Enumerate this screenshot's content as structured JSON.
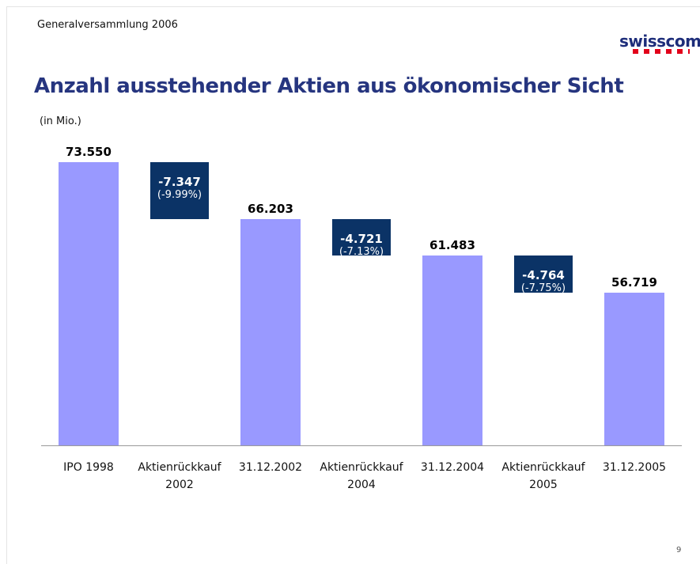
{
  "header": {
    "event": "Generalversammlung 2006",
    "logo": "swisscom",
    "page_number": "9"
  },
  "chart_data": {
    "type": "waterfall",
    "title": "Anzahl ausstehender Aktien aus ökonomischer Sicht",
    "unit_label": "(in Mio.)",
    "categories": [
      "IPO 1998",
      "Aktienrückkauf 2002",
      "31.12.2002",
      "Aktienrückkauf 2004",
      "31.12.2004",
      "Aktienrückkauf 2005",
      "31.12.2005"
    ],
    "kinds": [
      "total",
      "change",
      "total",
      "change",
      "total",
      "change",
      "total"
    ],
    "values": [
      73.55,
      -7.347,
      66.203,
      -4.721,
      61.483,
      -4.764,
      56.719
    ],
    "value_labels": [
      "73.550",
      "-7.347",
      "66.203",
      "-4.721",
      "61.483",
      "-4.764",
      "56.719"
    ],
    "change_percent_labels": [
      "(-9.99%)",
      "(-7.13%)",
      "(-7.75%)"
    ],
    "total_color": "#9999ff",
    "change_color": "#0b3366",
    "ylim": [
      37,
      75
    ]
  }
}
